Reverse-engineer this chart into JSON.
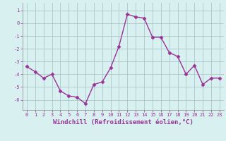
{
  "x": [
    0,
    1,
    2,
    3,
    4,
    5,
    6,
    7,
    8,
    9,
    10,
    11,
    12,
    13,
    14,
    15,
    16,
    17,
    18,
    19,
    20,
    21,
    22,
    23
  ],
  "y": [
    -3.4,
    -3.8,
    -4.3,
    -4.0,
    -5.3,
    -5.7,
    -5.8,
    -6.3,
    -4.8,
    -4.6,
    -3.5,
    -1.8,
    0.7,
    0.5,
    0.4,
    -1.1,
    -1.1,
    -2.3,
    -2.6,
    -4.0,
    -3.3,
    -4.8,
    -4.3,
    -4.3
  ],
  "line_color": "#993399",
  "marker": "D",
  "markersize": 2.5,
  "linewidth": 1.0,
  "bg_color": "#d8f0f0",
  "grid_color": "#aac8c8",
  "xlabel": "Windchill (Refroidissement éolien,°C)",
  "ylabel_ticks": [
    1,
    0,
    -1,
    -2,
    -3,
    -4,
    -5,
    -6
  ],
  "xlim": [
    -0.5,
    23.5
  ],
  "ylim": [
    -6.8,
    1.6
  ],
  "xticks": [
    0,
    1,
    2,
    3,
    4,
    5,
    6,
    7,
    8,
    9,
    10,
    11,
    12,
    13,
    14,
    15,
    16,
    17,
    18,
    19,
    20,
    21,
    22,
    23
  ],
  "tick_fontsize": 5.0,
  "xlabel_fontsize": 6.5,
  "spine_color": "#888888"
}
